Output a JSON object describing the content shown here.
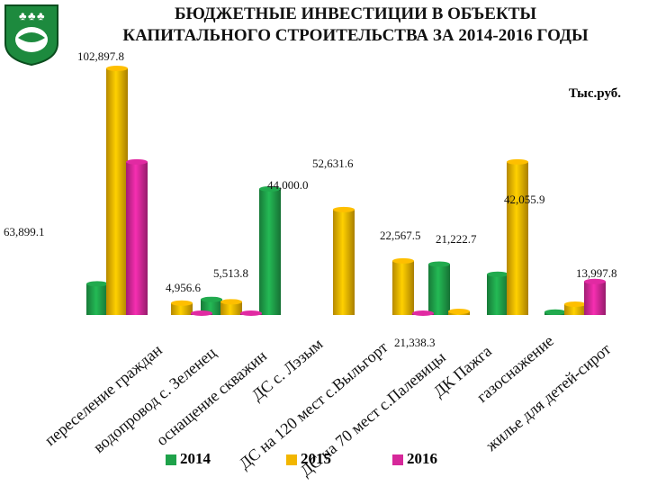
{
  "header": {
    "title_line1": "БЮДЖЕТНЫЕ ИНВЕСТИЦИИ В ОБЪЕКТЫ",
    "title_line2": "КАПИТАЛЬНОГО СТРОИТЕЛЬСТВА ЗА 2014-2016 ГОДЫ",
    "unit": "Тыс.руб.",
    "emblem_icon": "coat-of-arms-icon"
  },
  "colors": {
    "s2014": "#1fa24a",
    "s2015": "#f2b600",
    "s2016": "#d6289a"
  },
  "chart_data": {
    "type": "bar",
    "title": "БЮДЖЕТНЫЕ ИНВЕСТИЦИИ В ОБЪЕКТЫ КАПИТАЛЬНОГО СТРОИТЕЛЬСТВА ЗА 2014-2016 ГОДЫ",
    "ylabel": "Тыс.руб.",
    "categories": [
      "переселение граждан",
      "водопровод с. Зеленец",
      "оснащение скважин",
      "ДС на 120 мест с.Выльгорт",
      "ДС с. Лэзым",
      "ДС на 70 мест с.Палевицы",
      "ДК Пажга",
      "газоснажение",
      "жилье для детей-сирот"
    ],
    "series": [
      {
        "name": "2014",
        "values": [
          13000,
          0,
          6500,
          52631.6,
          0,
          0,
          21222.7,
          17000,
          1200
        ]
      },
      {
        "name": "2015",
        "values": [
          102897.8,
          4956.6,
          5513.8,
          0,
          44000.0,
          22567.5,
          1500,
          63899.1,
          4500
        ]
      },
      {
        "name": "2016",
        "values": [
          63899.1,
          200,
          200,
          0,
          0,
          200,
          0,
          0,
          13997.8
        ]
      }
    ],
    "data_labels": [
      "102,897.8",
      "63,899.1",
      "4,956.6",
      "5,513.8",
      "44,000.0",
      "52,631.6",
      "22,567.5",
      "21,338.3",
      "21,222.7",
      "42,055.9",
      "13,997.8"
    ],
    "legend": [
      "2014",
      "2015",
      "2016"
    ],
    "legend_position": "bottom",
    "grid": false
  }
}
